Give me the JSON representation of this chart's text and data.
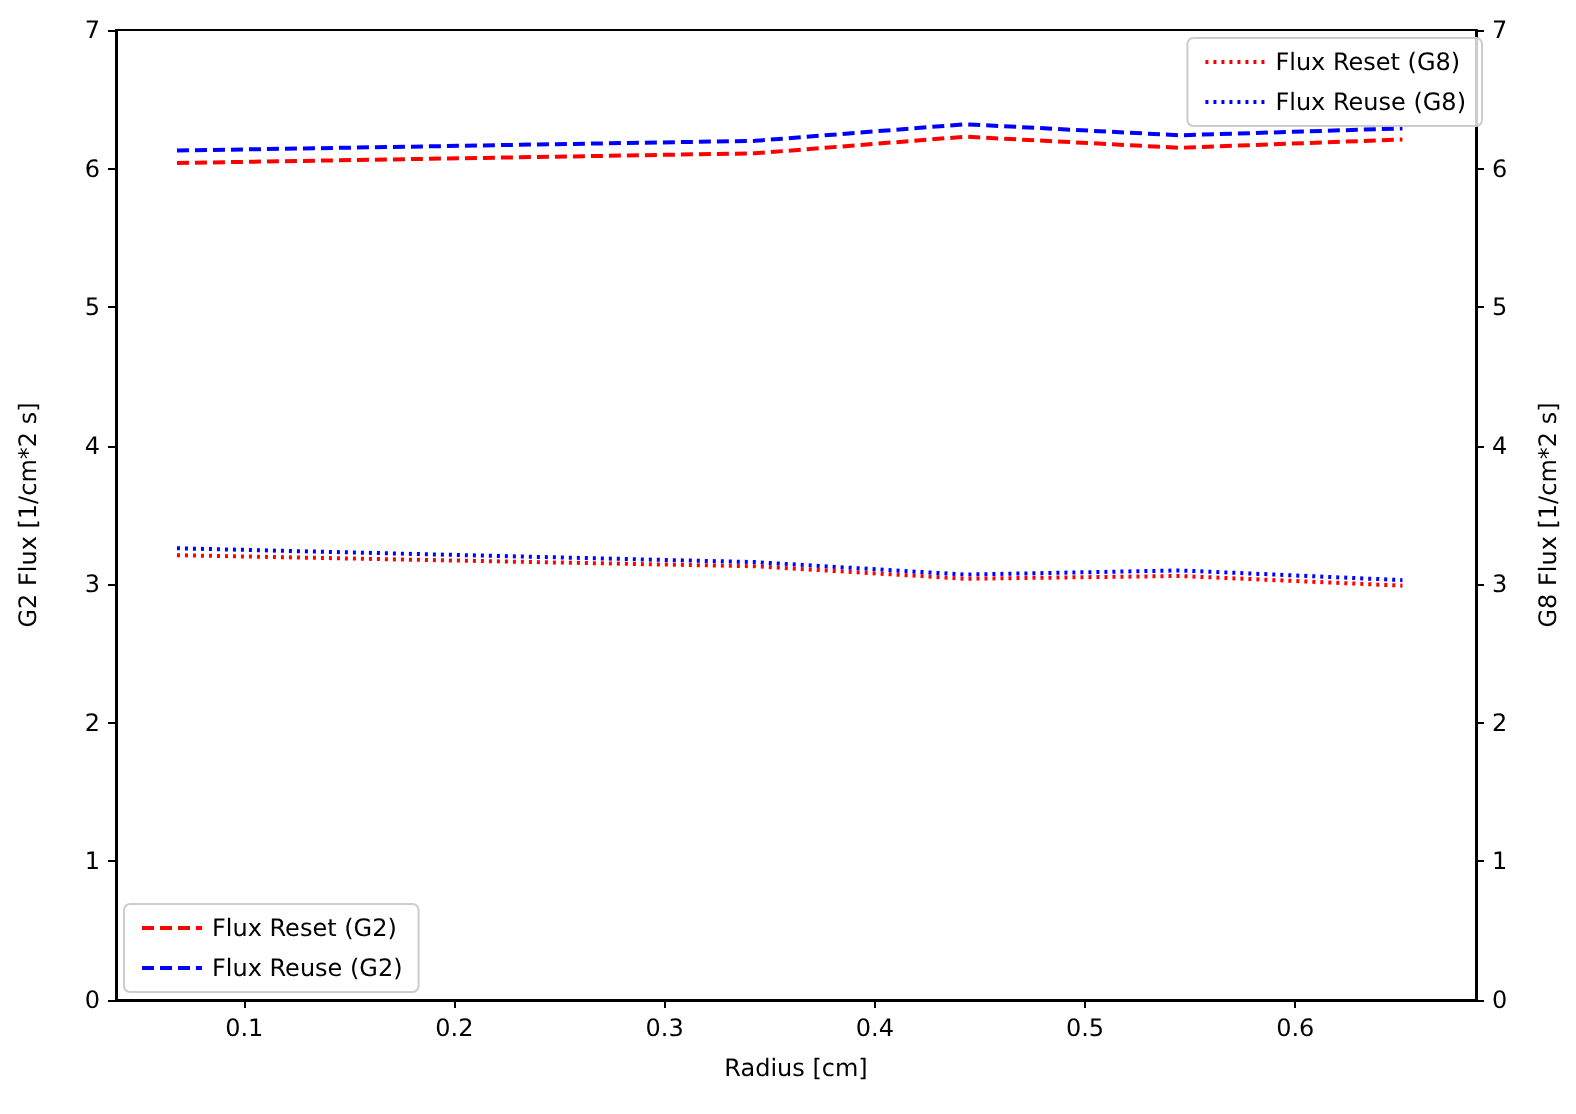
{
  "chart_data": {
    "type": "line",
    "xlabel": "Radius [cm]",
    "ylabel": "G2 Flux [1/cm*2 s]",
    "y2label": "G8 Flux [1/cm*2 s]",
    "x": [
      0.068,
      0.343,
      0.443,
      0.545,
      0.651
    ],
    "series": [
      {
        "name": "Flux Reset (G2)",
        "color": "#ff0000",
        "line_style": "dashed",
        "values": [
          6.04,
          6.11,
          6.23,
          6.15,
          6.21
        ]
      },
      {
        "name": "Flux Reuse (G2)",
        "color": "#0000ff",
        "line_style": "dashed",
        "values": [
          6.13,
          6.2,
          6.32,
          6.24,
          6.29
        ]
      },
      {
        "name": "Flux Reset (G8)",
        "color": "#ff0000",
        "line_style": "dotted",
        "axis": "y2",
        "values": [
          3.21,
          3.13,
          3.04,
          3.06,
          2.99
        ]
      },
      {
        "name": "Flux Reuse (G8)",
        "color": "#0000ff",
        "line_style": "dotted",
        "axis": "y2",
        "values": [
          3.26,
          3.16,
          3.07,
          3.1,
          3.03
        ]
      }
    ],
    "xlim": [
      0.039,
      0.686
    ],
    "xticks": [
      0.1,
      0.2,
      0.3,
      0.4,
      0.5,
      0.6
    ],
    "ylim": [
      0,
      7
    ],
    "yticks": [
      0,
      1,
      2,
      3,
      4,
      5,
      6,
      7
    ],
    "y2lim": [
      0,
      7
    ],
    "y2ticks": [
      0,
      1,
      2,
      3,
      4,
      5,
      6,
      7
    ],
    "marker": "none",
    "grid": false,
    "legend": [
      "bottom left",
      "top right"
    ]
  }
}
